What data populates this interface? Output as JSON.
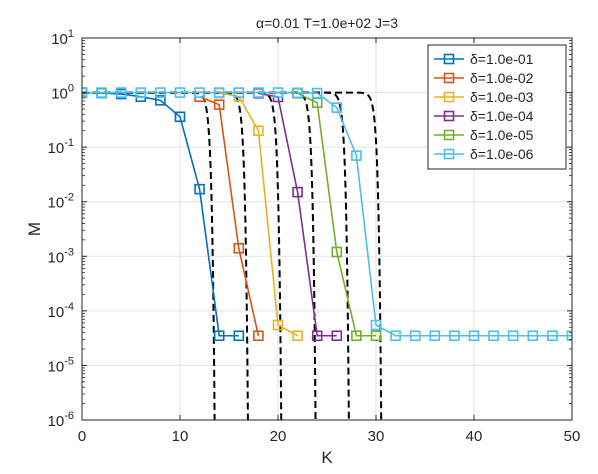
{
  "chart_data": {
    "type": "line",
    "title": "α=0.01   T=1.0e+02   J=3",
    "xlabel": "K",
    "ylabel": "M",
    "xlim": [
      0,
      50
    ],
    "ylim": [
      1e-06,
      10
    ],
    "yscale": "log",
    "grid": true,
    "legend_position": "top-right",
    "x_ticks": [
      0,
      10,
      20,
      30,
      40,
      50
    ],
    "x_tick_labels": [
      "0",
      "10",
      "20",
      "30",
      "40",
      "50"
    ],
    "y_ticks": [
      1e-06,
      1e-05,
      0.0001,
      0.001,
      0.01,
      0.1,
      1,
      10
    ],
    "y_tick_labels": [
      {
        "base": "10",
        "exp": "-6"
      },
      {
        "base": "10",
        "exp": "-5"
      },
      {
        "base": "10",
        "exp": "-4"
      },
      {
        "base": "10",
        "exp": "-3"
      },
      {
        "base": "10",
        "exp": "-2"
      },
      {
        "base": "10",
        "exp": "-1"
      },
      {
        "base": "10",
        "exp": "0"
      },
      {
        "base": "10",
        "exp": "1"
      }
    ],
    "series": [
      {
        "name": "δ=1.0e-01",
        "color": "#0072BD",
        "x": [
          0,
          2,
          4,
          6,
          8,
          10,
          12,
          14,
          16
        ],
        "y": [
          1.0,
          0.98,
          0.94,
          0.84,
          0.72,
          0.36,
          0.017,
          3.5e-05,
          3.5e-05
        ]
      },
      {
        "name": "δ=1.0e-02",
        "color": "#D95319",
        "x": [
          12,
          14,
          16,
          18
        ],
        "y": [
          0.84,
          0.6,
          0.0014,
          3.5e-05
        ]
      },
      {
        "name": "δ=1.0e-03",
        "color": "#EDB120",
        "x": [
          14,
          16,
          18,
          20,
          22
        ],
        "y": [
          0.98,
          0.85,
          0.2,
          5.5e-05,
          3.5e-05
        ]
      },
      {
        "name": "δ=1.0e-04",
        "color": "#7E2F8E",
        "x": [
          18,
          20,
          22,
          24,
          26
        ],
        "y": [
          0.97,
          0.83,
          0.015,
          3.5e-05,
          3.5e-05
        ]
      },
      {
        "name": "δ=1.0e-05",
        "color": "#77AC30",
        "x": [
          22,
          24,
          26,
          28,
          30
        ],
        "y": [
          0.97,
          0.65,
          0.0012,
          3.5e-05,
          3.5e-05
        ]
      },
      {
        "name": "δ=1.0e-06",
        "color": "#4DBEEE",
        "x": [
          0,
          2,
          4,
          6,
          8,
          10,
          12,
          14,
          16,
          18,
          20,
          22,
          24,
          26,
          28,
          30,
          32,
          34,
          36,
          38,
          40,
          42,
          44,
          46,
          48,
          50
        ],
        "y": [
          1.0,
          1.0,
          1.0,
          1.0,
          1.0,
          1.0,
          1.0,
          1.0,
          1.0,
          1.0,
          1.0,
          0.99,
          0.98,
          0.53,
          0.07,
          5.5e-05,
          3.5e-05,
          3.5e-05,
          3.5e-05,
          3.5e-05,
          3.5e-05,
          3.5e-05,
          3.5e-05,
          3.5e-05,
          3.5e-05,
          3.5e-05
        ]
      }
    ],
    "dashed_curves": [
      {
        "name": "",
        "center": 12.8,
        "scale": 0.28,
        "color": "#000000"
      },
      {
        "name": "",
        "center": 16.2,
        "scale": 0.28,
        "color": "#000000"
      },
      {
        "name": "",
        "center": 19.6,
        "scale": 0.28,
        "color": "#000000"
      },
      {
        "name": "",
        "center": 23.1,
        "scale": 0.28,
        "color": "#000000"
      },
      {
        "name": "",
        "center": 26.5,
        "scale": 0.28,
        "color": "#000000"
      },
      {
        "name": "",
        "center": 29.8,
        "scale": 0.28,
        "color": "#000000"
      }
    ]
  }
}
